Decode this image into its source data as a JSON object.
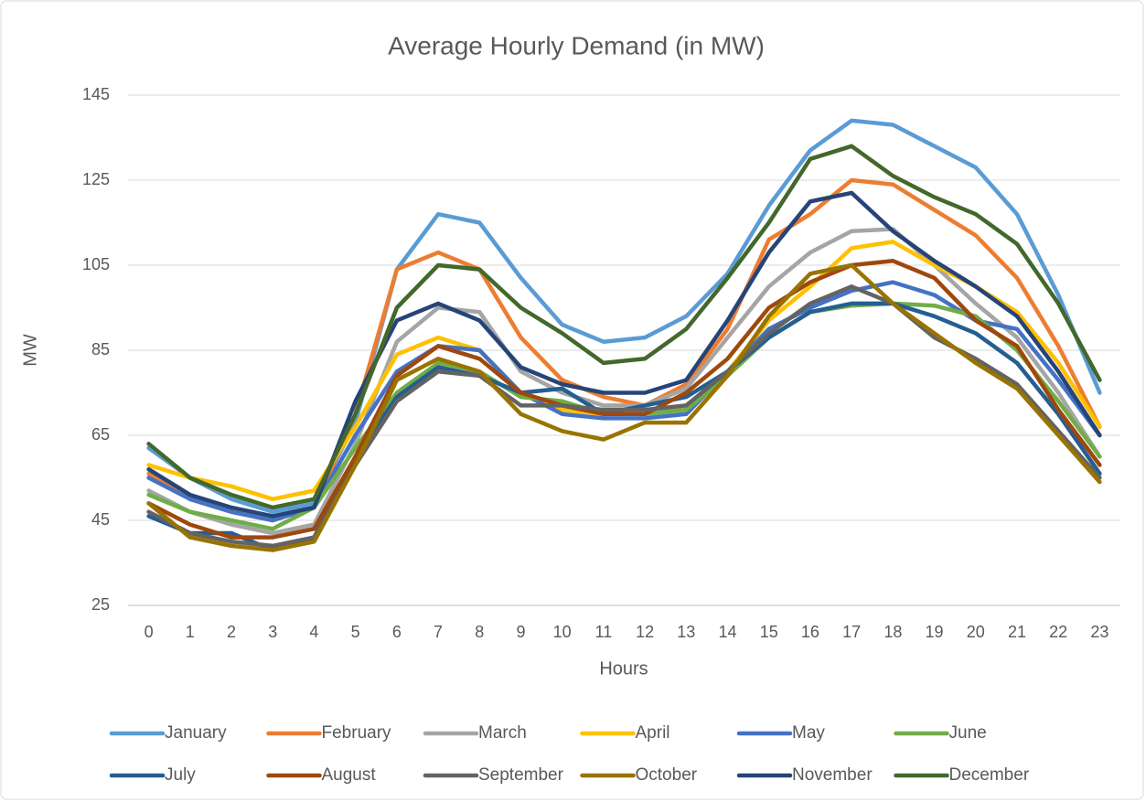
{
  "chart_data": {
    "type": "line",
    "title": "Average Hourly Demand (in MW)",
    "x_label": "Hours",
    "y_label": "MW",
    "categories": [
      "0",
      "1",
      "2",
      "3",
      "4",
      "5",
      "6",
      "7",
      "8",
      "9",
      "10",
      "11",
      "12",
      "13",
      "14",
      "15",
      "16",
      "17",
      "18",
      "19",
      "20",
      "21",
      "22",
      "23"
    ],
    "ylim": [
      25,
      145
    ],
    "yticks": [
      25,
      45,
      65,
      85,
      105,
      125,
      145
    ],
    "grid": true,
    "legend": "bottom",
    "series": [
      {
        "name": "January",
        "color": "#5b9bd5",
        "values": [
          62,
          55,
          50,
          47,
          49,
          68,
          104,
          117,
          115,
          102,
          91,
          87,
          88,
          93,
          103,
          119,
          132,
          139,
          138,
          133,
          128,
          117,
          98,
          75
        ]
      },
      {
        "name": "February",
        "color": "#ed7d31",
        "values": [
          56,
          50,
          47,
          45,
          48,
          70,
          104,
          108,
          104,
          88,
          78,
          74,
          72,
          77,
          90,
          111,
          117,
          125,
          124,
          118,
          112,
          102,
          86,
          67
        ]
      },
      {
        "name": "March",
        "color": "#a5a5a5",
        "values": [
          52,
          47,
          44,
          42,
          44,
          63,
          87,
          95,
          94,
          80,
          75,
          72,
          72,
          76,
          88,
          100,
          108,
          113,
          113.5,
          105,
          96,
          88,
          75,
          60
        ]
      },
      {
        "name": "April",
        "color": "#ffc000",
        "values": [
          58,
          55,
          53,
          50,
          52,
          67,
          84,
          88,
          85,
          75,
          71,
          70,
          70,
          72,
          80,
          92,
          100,
          109,
          110.5,
          105,
          100,
          94,
          82,
          67
        ]
      },
      {
        "name": "May",
        "color": "#4472c4",
        "values": [
          55,
          50,
          47,
          45,
          48,
          65,
          80,
          86,
          85,
          75,
          70,
          69,
          69,
          70,
          80,
          90,
          95,
          99,
          101,
          98,
          92,
          90,
          78,
          65
        ]
      },
      {
        "name": "June",
        "color": "#70ad47",
        "values": [
          51,
          47,
          45,
          43,
          48,
          62,
          75,
          82,
          80,
          74,
          73,
          70,
          70,
          71,
          79,
          88,
          94,
          95.5,
          96,
          95.5,
          93,
          85,
          73,
          60
        ]
      },
      {
        "name": "July",
        "color": "#255e91",
        "values": [
          46,
          42,
          42,
          38,
          41,
          60,
          74,
          81,
          79,
          75,
          76,
          70,
          72,
          74,
          80,
          88,
          94,
          96,
          96,
          93,
          89,
          82,
          70,
          56
        ]
      },
      {
        "name": "August",
        "color": "#9e480e",
        "values": [
          49,
          44,
          41,
          41,
          43,
          60,
          79,
          86,
          83,
          75,
          72,
          70,
          70,
          75,
          83,
          95,
          101,
          105,
          106,
          102,
          92,
          86,
          71,
          58
        ]
      },
      {
        "name": "September",
        "color": "#636363",
        "values": [
          47,
          42,
          40,
          39,
          41,
          58,
          73,
          80,
          79,
          72,
          72,
          71,
          71,
          72,
          80,
          89,
          96,
          100,
          96,
          88,
          83,
          77,
          66,
          55
        ]
      },
      {
        "name": "October",
        "color": "#997300",
        "values": [
          49,
          41,
          39,
          38,
          40,
          58,
          78,
          83,
          80,
          70,
          66,
          64,
          68,
          68,
          79,
          93,
          103,
          105,
          96,
          89,
          82,
          76,
          65,
          54
        ]
      },
      {
        "name": "November",
        "color": "#264478",
        "values": [
          57,
          51,
          48,
          46,
          48,
          73,
          92,
          96,
          92,
          81,
          77,
          75,
          75,
          78,
          92,
          108,
          120,
          122,
          113,
          106,
          100,
          93,
          80,
          65
        ]
      },
      {
        "name": "December",
        "color": "#43682b",
        "values": [
          63,
          55,
          51,
          48,
          50,
          70,
          95,
          105,
          104,
          95,
          89,
          82,
          83,
          90,
          102,
          115,
          130,
          133,
          126,
          121,
          117,
          110,
          96,
          78
        ]
      }
    ]
  }
}
